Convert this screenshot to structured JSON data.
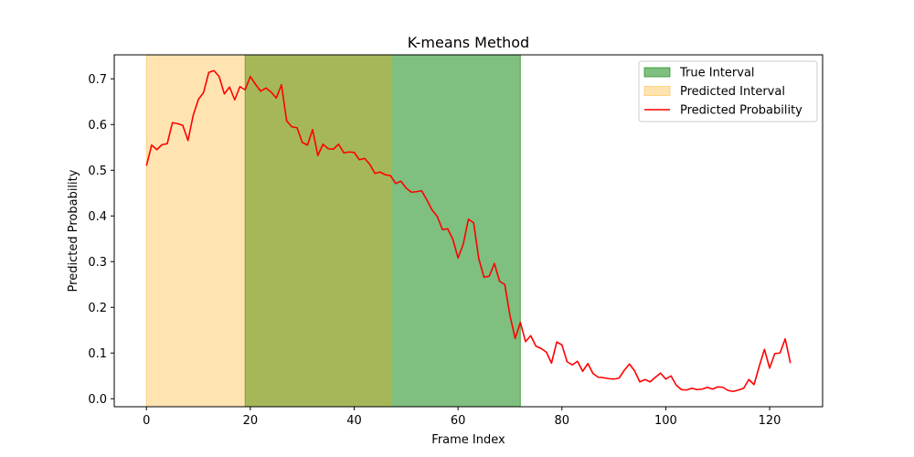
{
  "chart_data": {
    "type": "line",
    "title": "K-means Method",
    "xlabel": "Frame Index",
    "ylabel": "Predicted Probability",
    "xlim": [
      -6.2,
      130.2
    ],
    "ylim": [
      -0.0175,
      0.7525
    ],
    "xticks": [
      0,
      20,
      40,
      60,
      80,
      100,
      120
    ],
    "yticks": [
      0.0,
      0.1,
      0.2,
      0.3,
      0.4,
      0.5,
      0.6,
      0.7
    ],
    "grid": false,
    "legend_position": "top-right",
    "legend": [
      {
        "label": "True Interval",
        "kind": "patch",
        "color": "#008000"
      },
      {
        "label": "Predicted Interval",
        "kind": "patch",
        "color": "#FFA500"
      },
      {
        "label": "Predicted Probability",
        "kind": "line",
        "color": "#FF0000"
      }
    ],
    "intervals": [
      {
        "name": "True Interval",
        "start": 19,
        "end": 72,
        "color": "#008000",
        "opacity": 0.5
      },
      {
        "name": "Predicted Interval",
        "start": 0,
        "end": 47,
        "color": "#FFA500",
        "opacity": 0.3
      }
    ],
    "series": [
      {
        "name": "Predicted Probability",
        "color": "#FF0000",
        "x_start": 0,
        "values": [
          0.51,
          0.555,
          0.545,
          0.556,
          0.558,
          0.604,
          0.602,
          0.598,
          0.565,
          0.62,
          0.655,
          0.67,
          0.714,
          0.718,
          0.705,
          0.667,
          0.682,
          0.654,
          0.683,
          0.676,
          0.705,
          0.688,
          0.673,
          0.68,
          0.671,
          0.658,
          0.687,
          0.608,
          0.595,
          0.593,
          0.561,
          0.555,
          0.589,
          0.532,
          0.557,
          0.547,
          0.546,
          0.557,
          0.538,
          0.54,
          0.539,
          0.523,
          0.526,
          0.513,
          0.493,
          0.496,
          0.49,
          0.488,
          0.471,
          0.476,
          0.461,
          0.452,
          0.453,
          0.455,
          0.435,
          0.413,
          0.399,
          0.37,
          0.372,
          0.349,
          0.308,
          0.338,
          0.393,
          0.385,
          0.306,
          0.266,
          0.268,
          0.296,
          0.257,
          0.25,
          0.182,
          0.132,
          0.167,
          0.125,
          0.138,
          0.115,
          0.11,
          0.102,
          0.078,
          0.124,
          0.118,
          0.081,
          0.074,
          0.082,
          0.06,
          0.077,
          0.055,
          0.047,
          0.046,
          0.044,
          0.043,
          0.045,
          0.062,
          0.076,
          0.061,
          0.037,
          0.042,
          0.037,
          0.047,
          0.056,
          0.043,
          0.05,
          0.03,
          0.02,
          0.019,
          0.023,
          0.02,
          0.021,
          0.025,
          0.021,
          0.026,
          0.025,
          0.018,
          0.016,
          0.019,
          0.023,
          0.042,
          0.031,
          0.071,
          0.108,
          0.067,
          0.099,
          0.1,
          0.131,
          0.078
        ]
      }
    ]
  }
}
